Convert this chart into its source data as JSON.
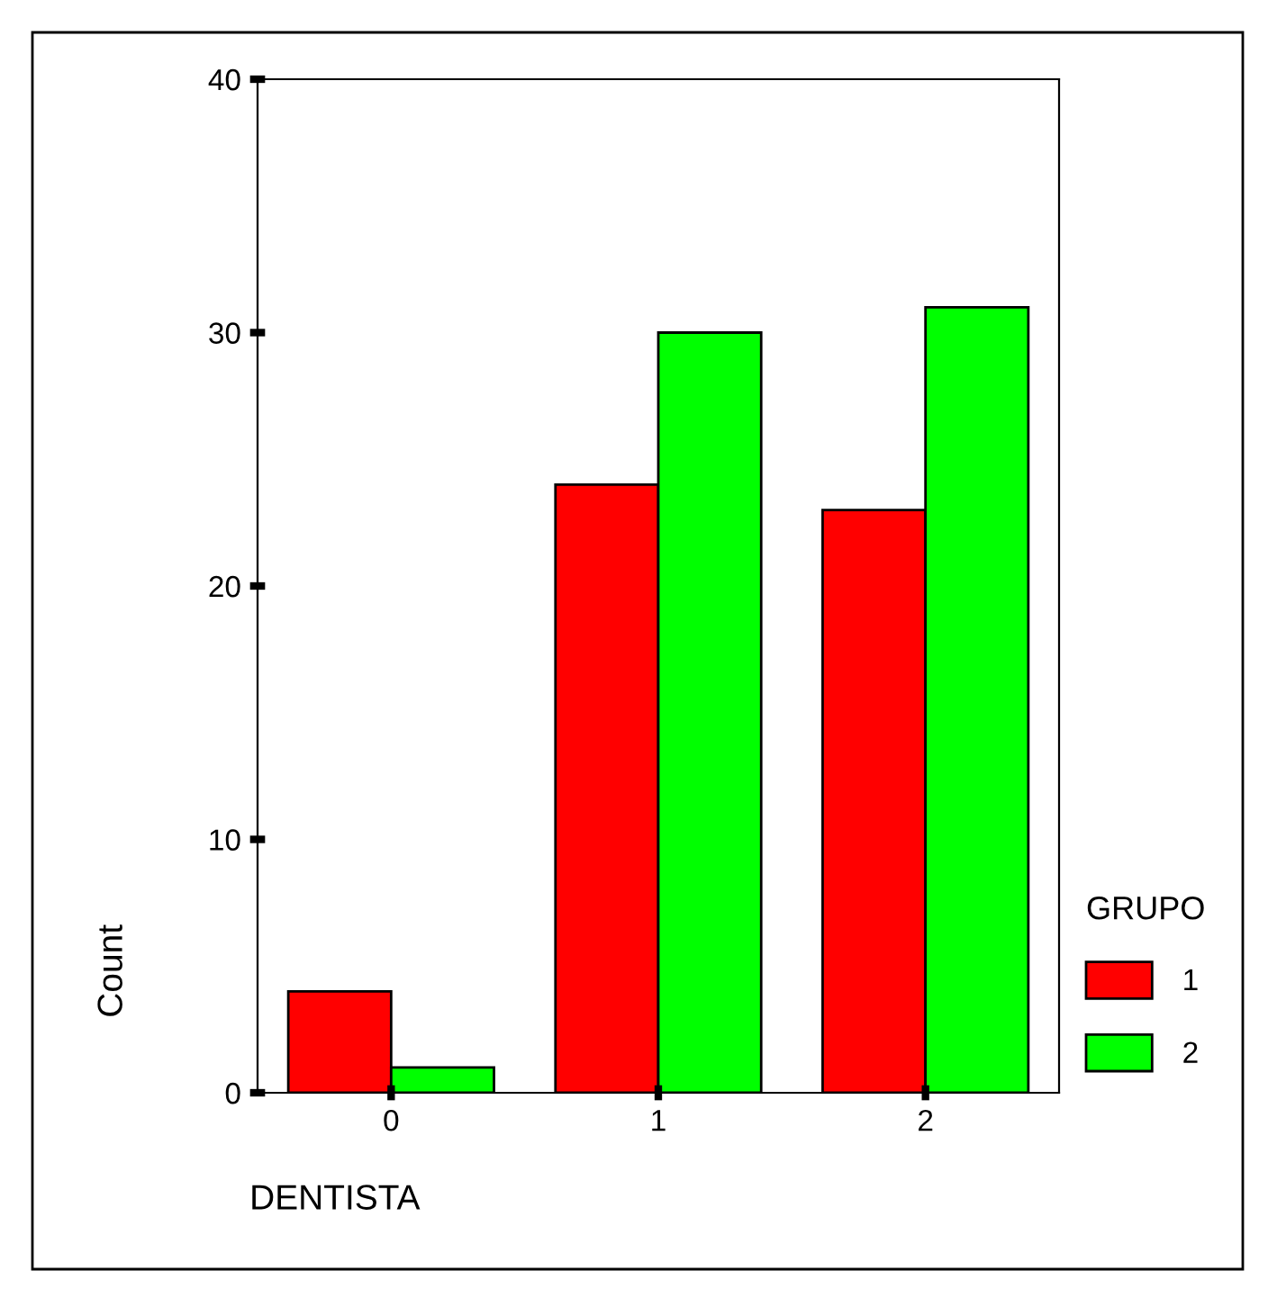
{
  "chart_data": {
    "type": "bar",
    "xlabel": "DENTISTA",
    "ylabel": "Count",
    "legend_title": "GRUPO",
    "categories": [
      "0",
      "1",
      "2"
    ],
    "series": [
      {
        "name": "1",
        "color": "#ff0000",
        "values": [
          4,
          24,
          23
        ]
      },
      {
        "name": "2",
        "color": "#00ff00",
        "values": [
          1,
          30,
          31
        ]
      }
    ],
    "ylim": [
      0,
      40
    ],
    "yticks": [
      0,
      10,
      20,
      30,
      40
    ],
    "grid": false,
    "legend": "right"
  }
}
